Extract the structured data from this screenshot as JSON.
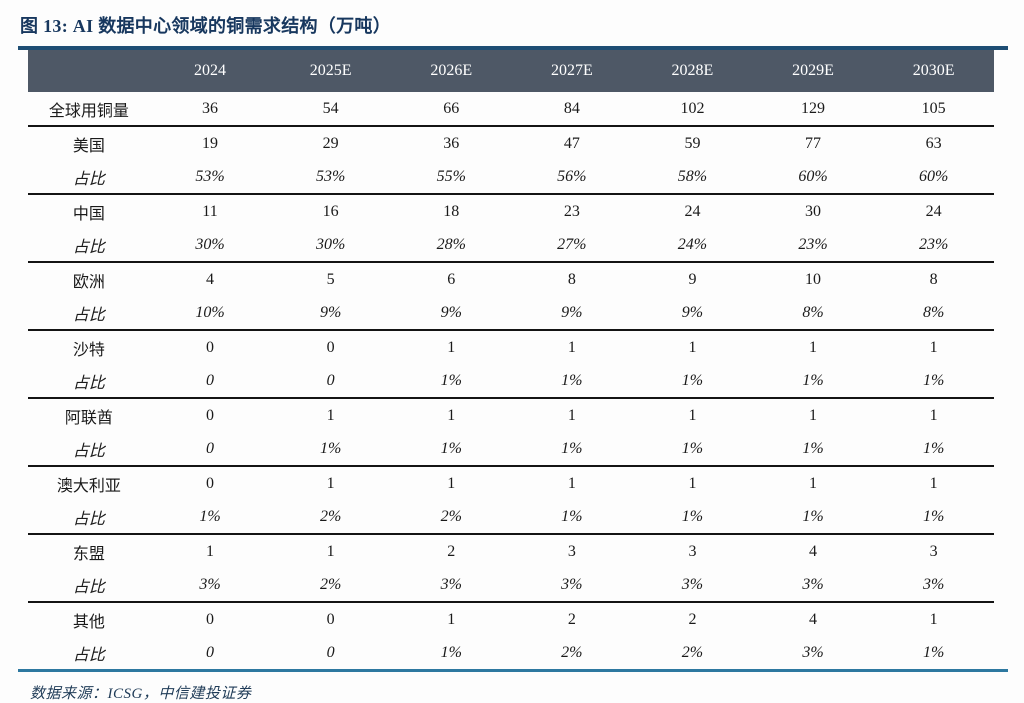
{
  "figure": {
    "title": "图 13: AI 数据中心领域的铜需求结构（万吨）",
    "source_label": "数据来源：ICSG，中信建投证券"
  },
  "table": {
    "row_header": "",
    "columns": [
      "2024",
      "2025E",
      "2026E",
      "2027E",
      "2028E",
      "2029E",
      "2030E"
    ],
    "rows": [
      {
        "label": "全球用铜量",
        "italic": false,
        "group_end": true,
        "values": [
          "36",
          "54",
          "66",
          "84",
          "102",
          "129",
          "105"
        ]
      },
      {
        "label": "美国",
        "italic": false,
        "group_end": false,
        "values": [
          "19",
          "29",
          "36",
          "47",
          "59",
          "77",
          "63"
        ]
      },
      {
        "label": "占比",
        "italic": true,
        "group_end": true,
        "values": [
          "53%",
          "53%",
          "55%",
          "56%",
          "58%",
          "60%",
          "60%"
        ]
      },
      {
        "label": "中国",
        "italic": false,
        "group_end": false,
        "values": [
          "11",
          "16",
          "18",
          "23",
          "24",
          "30",
          "24"
        ]
      },
      {
        "label": "占比",
        "italic": true,
        "group_end": true,
        "values": [
          "30%",
          "30%",
          "28%",
          "27%",
          "24%",
          "23%",
          "23%"
        ]
      },
      {
        "label": "欧洲",
        "italic": false,
        "group_end": false,
        "values": [
          "4",
          "5",
          "6",
          "8",
          "9",
          "10",
          "8"
        ]
      },
      {
        "label": "占比",
        "italic": true,
        "group_end": true,
        "values": [
          "10%",
          "9%",
          "9%",
          "9%",
          "9%",
          "8%",
          "8%"
        ]
      },
      {
        "label": "沙特",
        "italic": false,
        "group_end": false,
        "values": [
          "0",
          "0",
          "1",
          "1",
          "1",
          "1",
          "1"
        ]
      },
      {
        "label": "占比",
        "italic": true,
        "group_end": true,
        "values": [
          "0",
          "0",
          "1%",
          "1%",
          "1%",
          "1%",
          "1%"
        ]
      },
      {
        "label": "阿联酋",
        "italic": false,
        "group_end": false,
        "values": [
          "0",
          "1",
          "1",
          "1",
          "1",
          "1",
          "1"
        ]
      },
      {
        "label": "占比",
        "italic": true,
        "group_end": true,
        "values": [
          "0",
          "1%",
          "1%",
          "1%",
          "1%",
          "1%",
          "1%"
        ]
      },
      {
        "label": "澳大利亚",
        "italic": false,
        "group_end": false,
        "values": [
          "0",
          "1",
          "1",
          "1",
          "1",
          "1",
          "1"
        ]
      },
      {
        "label": "占比",
        "italic": true,
        "group_end": true,
        "values": [
          "1%",
          "2%",
          "2%",
          "1%",
          "1%",
          "1%",
          "1%"
        ]
      },
      {
        "label": "东盟",
        "italic": false,
        "group_end": false,
        "values": [
          "1",
          "1",
          "2",
          "3",
          "3",
          "4",
          "3"
        ]
      },
      {
        "label": "占比",
        "italic": true,
        "group_end": true,
        "values": [
          "3%",
          "2%",
          "3%",
          "3%",
          "3%",
          "3%",
          "3%"
        ]
      },
      {
        "label": "其他",
        "italic": false,
        "group_end": false,
        "values": [
          "0",
          "0",
          "1",
          "2",
          "2",
          "4",
          "1"
        ]
      },
      {
        "label": "占比",
        "italic": true,
        "group_end": false,
        "values": [
          "0",
          "0",
          "1%",
          "2%",
          "2%",
          "3%",
          "1%"
        ]
      }
    ]
  },
  "chart_data": {
    "type": "table",
    "title": "图 13: AI 数据中心领域的铜需求结构（万吨）",
    "unit": "万吨",
    "columns": [
      "2024",
      "2025E",
      "2026E",
      "2027E",
      "2028E",
      "2029E",
      "2030E"
    ],
    "series": [
      {
        "name": "全球用铜量",
        "values": [
          36,
          54,
          66,
          84,
          102,
          129,
          105
        ]
      },
      {
        "name": "美国",
        "values": [
          19,
          29,
          36,
          47,
          59,
          77,
          63
        ],
        "share": [
          "53%",
          "53%",
          "55%",
          "56%",
          "58%",
          "60%",
          "60%"
        ]
      },
      {
        "name": "中国",
        "values": [
          11,
          16,
          18,
          23,
          24,
          30,
          24
        ],
        "share": [
          "30%",
          "30%",
          "28%",
          "27%",
          "24%",
          "23%",
          "23%"
        ]
      },
      {
        "name": "欧洲",
        "values": [
          4,
          5,
          6,
          8,
          9,
          10,
          8
        ],
        "share": [
          "10%",
          "9%",
          "9%",
          "9%",
          "9%",
          "8%",
          "8%"
        ]
      },
      {
        "name": "沙特",
        "values": [
          0,
          0,
          1,
          1,
          1,
          1,
          1
        ],
        "share": [
          "0",
          "0",
          "1%",
          "1%",
          "1%",
          "1%",
          "1%"
        ]
      },
      {
        "name": "阿联酋",
        "values": [
          0,
          1,
          1,
          1,
          1,
          1,
          1
        ],
        "share": [
          "0",
          "1%",
          "1%",
          "1%",
          "1%",
          "1%",
          "1%"
        ]
      },
      {
        "name": "澳大利亚",
        "values": [
          0,
          1,
          1,
          1,
          1,
          1,
          1
        ],
        "share": [
          "1%",
          "2%",
          "2%",
          "1%",
          "1%",
          "1%",
          "1%"
        ]
      },
      {
        "name": "东盟",
        "values": [
          1,
          1,
          2,
          3,
          3,
          4,
          3
        ],
        "share": [
          "3%",
          "2%",
          "3%",
          "3%",
          "3%",
          "3%",
          "3%"
        ]
      },
      {
        "name": "其他",
        "values": [
          0,
          0,
          1,
          2,
          2,
          4,
          1
        ],
        "share": [
          "0",
          "0",
          "1%",
          "2%",
          "2%",
          "3%",
          "1%"
        ]
      }
    ],
    "source": "数据来源：ICSG，中信建投证券"
  },
  "colors": {
    "title": "#17375e",
    "top_rule": "#1e4e74",
    "header_bg": "#4e5866",
    "header_text": "#ffffff",
    "body_text": "#1a1a1a",
    "group_divider": "#141414",
    "bottom_rule": "#2d78a0",
    "source_text": "#1f3b57",
    "page_bg": "#fdfdfd"
  }
}
